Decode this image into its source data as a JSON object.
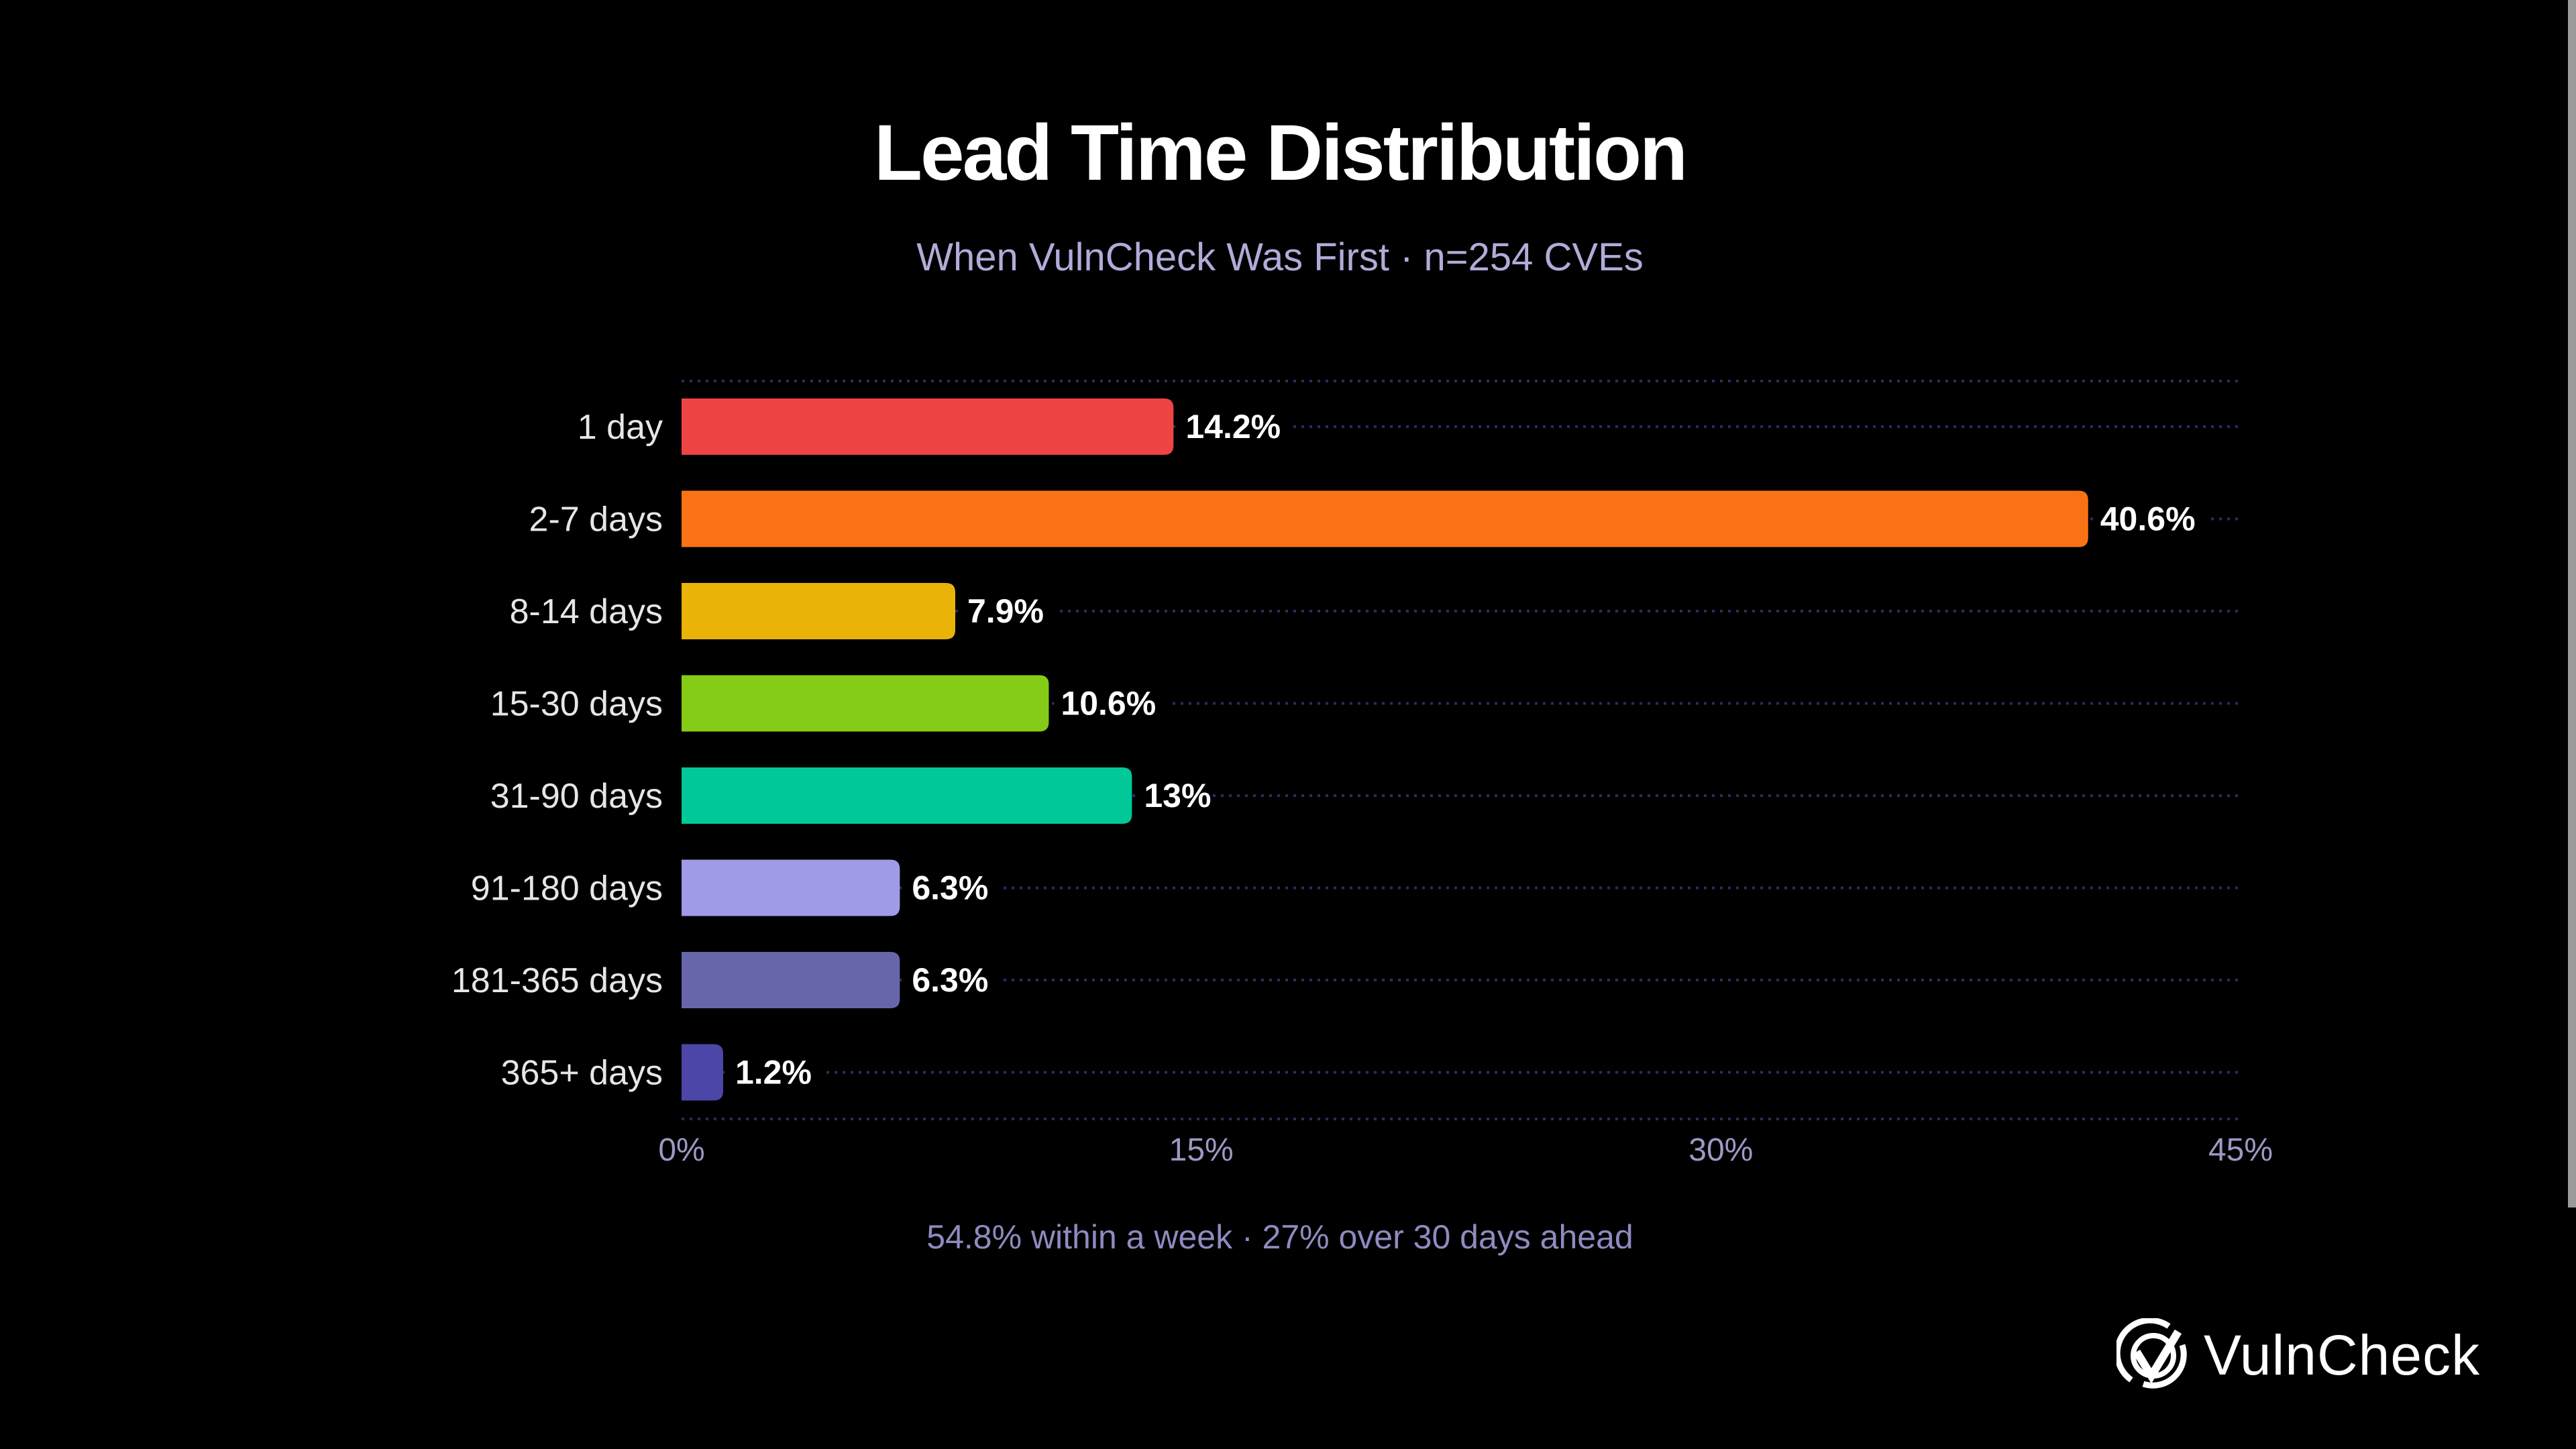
{
  "title": "Lead Time Distribution",
  "subtitle": "When VulnCheck Was First · n=254 CVEs",
  "footer": "54.8% within a week · 27% over 30 days ahead",
  "logo": {
    "text": "VulnCheck",
    "icon": "check-circle-icon"
  },
  "chart_data": {
    "type": "bar",
    "orientation": "horizontal",
    "categories": [
      "1 day",
      "2-7 days",
      "8-14 days",
      "15-30 days",
      "31-90 days",
      "91-180 days",
      "181-365 days",
      "365+ days"
    ],
    "values": [
      14.2,
      40.6,
      7.9,
      10.6,
      13,
      6.3,
      6.3,
      1.2
    ],
    "value_labels": [
      "14.2%",
      "40.6%",
      "7.9%",
      "10.6%",
      "13%",
      "6.3%",
      "6.3%",
      "1.2%"
    ],
    "colors": [
      "#ef4444",
      "#f97316",
      "#eab308",
      "#84cc16",
      "#00c896",
      "#a09be6",
      "#6866aa",
      "#4c46a8"
    ],
    "xlim": [
      0,
      45
    ],
    "xticks": [
      0,
      15,
      30,
      45
    ],
    "xtick_labels": [
      "0%",
      "15%",
      "30%",
      "45%"
    ],
    "grid": "dotted horizontal",
    "background": "#000000",
    "gridline_color": "#2e2a66"
  }
}
